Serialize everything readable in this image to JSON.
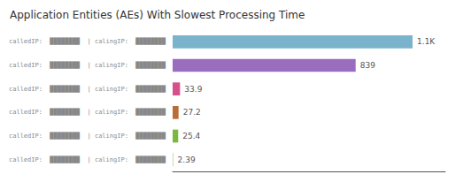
{
  "chart_data": {
    "type": "bar",
    "orientation": "horizontal",
    "title": "Application Entities (AEs) With Slowest Processing Time",
    "categories": [
      "calledIP:  ████████  | calingIP:  ████████",
      "calledIP:  ████████  | calingIP:  ████████",
      "calledIP:  ████████  | calingIP:  ████████",
      "calledIP:  ████████  | calingIP:  ████████",
      "calledIP:  ████████  | calingIP:  ████████",
      "calledIP:  ████████  | calingIP:  ████████"
    ],
    "values": [
      1100,
      839,
      33.9,
      27.2,
      25.4,
      2.39
    ],
    "value_labels": [
      "1.1K",
      "839",
      "33.9",
      "27.2",
      "25.4",
      "2.39"
    ],
    "colors": [
      "#7ab3cc",
      "#9b6dbe",
      "#d6508a",
      "#b86e3a",
      "#7ab840",
      "#90d050"
    ],
    "xlim": [
      0,
      1250
    ],
    "data_labels": true,
    "tick_labels": "y",
    "grid": false
  }
}
